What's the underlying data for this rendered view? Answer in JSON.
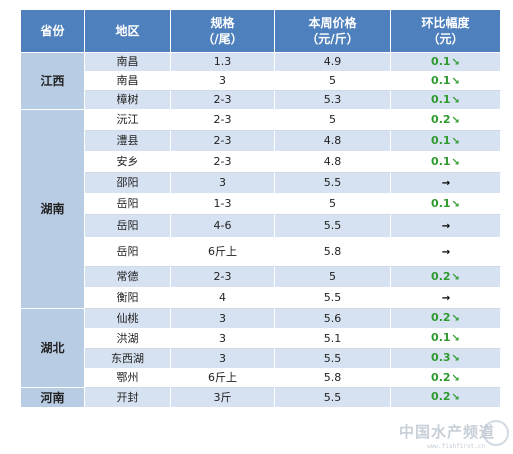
{
  "headers": [
    {
      "line1": "省份",
      "line2": ""
    },
    {
      "line1": "地区",
      "line2": ""
    },
    {
      "line1": "规格",
      "line2": "（/尾）"
    },
    {
      "line1": "本周价格",
      "line2": "（元/斤）"
    },
    {
      "line1": "环比幅度",
      "line2": "（元）"
    }
  ],
  "provinces": {
    "jiangxi": "江西",
    "hunan": "湖南",
    "hubei": "湖北",
    "henan": "河南"
  },
  "rows": [
    {
      "region": "南昌",
      "spec": "1.3",
      "price": "4.9",
      "change": "0.1",
      "trend": "down"
    },
    {
      "region": "南昌",
      "spec": "3",
      "price": "5",
      "change": "0.1",
      "trend": "down"
    },
    {
      "region": "樟树",
      "spec": "2-3",
      "price": "5.3",
      "change": "0.1",
      "trend": "down"
    },
    {
      "region": "沅江",
      "spec": "2-3",
      "price": "5",
      "change": "0.2",
      "trend": "down"
    },
    {
      "region": "澧县",
      "spec": "2-3",
      "price": "4.8",
      "change": "0.1",
      "trend": "down"
    },
    {
      "region": "安乡",
      "spec": "2-3",
      "price": "4.8",
      "change": "0.1",
      "trend": "down"
    },
    {
      "region": "邵阳",
      "spec": "3",
      "price": "5.5",
      "change": "",
      "trend": "flat"
    },
    {
      "region": "岳阳",
      "spec": "1-3",
      "price": "5",
      "change": "0.1",
      "trend": "down"
    },
    {
      "region": "岳阳",
      "spec": "4-6",
      "price": "5.5",
      "change": "",
      "trend": "flat"
    },
    {
      "region": "岳阳",
      "spec": "6斤上",
      "price": "5.8",
      "change": "",
      "trend": "flat"
    },
    {
      "region": "常德",
      "spec": "2-3",
      "price": "5",
      "change": "0.2",
      "trend": "down"
    },
    {
      "region": "衡阳",
      "spec": "4",
      "price": "5.5",
      "change": "",
      "trend": "flat"
    },
    {
      "region": "仙桃",
      "spec": "3",
      "price": "5.6",
      "change": "0.2",
      "trend": "down"
    },
    {
      "region": "洪湖",
      "spec": "3",
      "price": "5.1",
      "change": "0.1",
      "trend": "down"
    },
    {
      "region": "东西湖",
      "spec": "3",
      "price": "5.5",
      "change": "0.3",
      "trend": "down"
    },
    {
      "region": "鄂州",
      "spec": "6斤上",
      "price": "5.8",
      "change": "0.2",
      "trend": "down"
    },
    {
      "region": "开封",
      "spec": "3斤",
      "price": "5.5",
      "change": "0.2",
      "trend": "down"
    }
  ],
  "arrows": {
    "down": "↘",
    "flat": "→"
  },
  "colors": {
    "header_bg": "#4e80bd",
    "province_bg": "#b8cce4",
    "band_bg": "#d6e2f1",
    "down_color": "#2e9a2e"
  },
  "watermark": {
    "text": "中国水产频道",
    "url": "www.fishfirst.cn"
  }
}
